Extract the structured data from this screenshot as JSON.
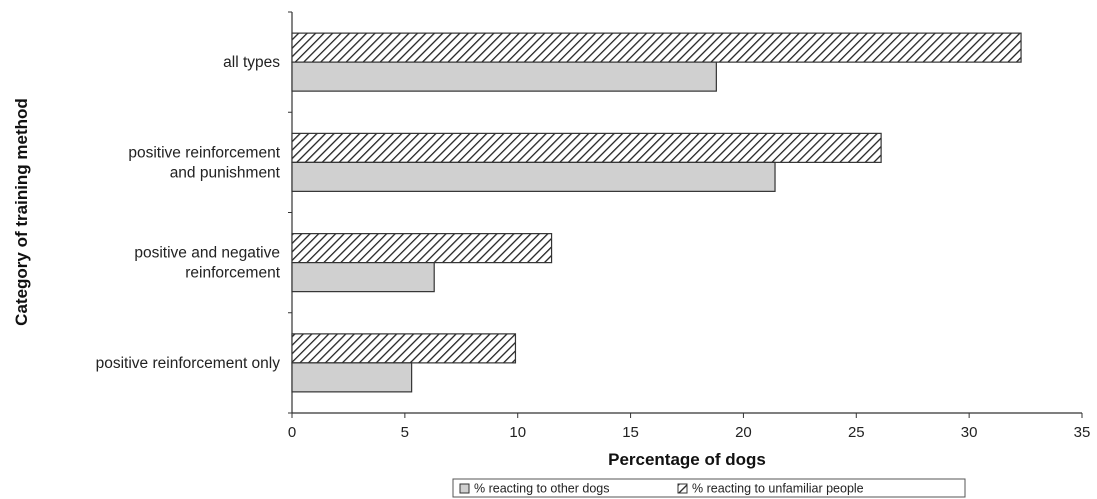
{
  "chart_data": {
    "type": "bar",
    "orientation": "horizontal",
    "xlabel": "Percentage of dogs",
    "ylabel": "Category of training method",
    "xlim": [
      0,
      35
    ],
    "xticks": [
      "0",
      "5",
      "10",
      "15",
      "20",
      "25",
      "30",
      "35"
    ],
    "grid": false,
    "legend_position": "bottom",
    "categories": [
      [
        "all types"
      ],
      [
        "positive reinforcement",
        "and punishment"
      ],
      [
        "positive and negative",
        "reinforcement"
      ],
      [
        "positive reinforcement only"
      ]
    ],
    "series": [
      {
        "name": "% reacting to other dogs",
        "values": [
          18.8,
          21.4,
          6.3,
          5.3
        ],
        "fill": "#d0d0d0",
        "pattern": "solid"
      },
      {
        "name": "% reacting to unfamiliar people",
        "values": [
          32.3,
          26.1,
          11.5,
          9.9
        ],
        "fill": "#ffffff",
        "pattern": "diagonal-hatch"
      }
    ],
    "colors": {
      "bar_stroke": "#333333",
      "gray_fill": "#d0d0d0",
      "hatch": "#222222"
    }
  }
}
